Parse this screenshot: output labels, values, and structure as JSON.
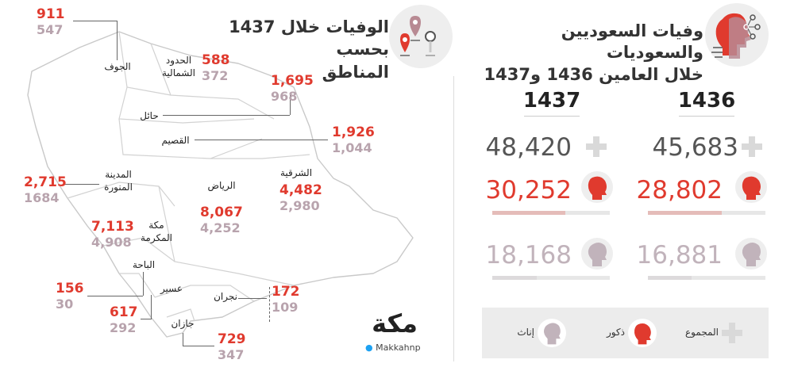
{
  "colors": {
    "male": "#e03a2e",
    "female": "#c1b3bb",
    "total": "#d9d9d9"
  },
  "icons": {
    "header_left": "map-pins-icon",
    "header_right": "human-head-network-icon",
    "male": "male-head-icon",
    "female": "female-head-icon",
    "total": "plus-icon"
  },
  "title_left": {
    "line1": "الوفيات خلال 1437 بحسب",
    "line2": "المناطق"
  },
  "title_right": {
    "line1": "وفيات السعوديين والسعوديات",
    "line2": "خلال العامين 1436 و1437"
  },
  "years": [
    {
      "year": "1436",
      "total": "45,683",
      "male": "28,802",
      "female": "16,881",
      "male_share": 0.6305,
      "female_share": 0.3695
    },
    {
      "year": "1437",
      "total": "48,420",
      "male": "30,252",
      "female": "18,168",
      "male_share": 0.6248,
      "female_share": 0.3752
    }
  ],
  "legend": {
    "total": "المجموع",
    "male": "ذكور",
    "female": "إناث"
  },
  "logo": {
    "name": "مكة",
    "handle": "Makkahnp"
  },
  "regions": {
    "jouf": {
      "name": "الجوف",
      "male": "911",
      "female": "547"
    },
    "northern": {
      "name1": "الحدود",
      "name2": "الشمالية",
      "male": "588",
      "female": "372"
    },
    "hail": {
      "name": "حائل",
      "male": "1,695",
      "female": "968"
    },
    "qassim": {
      "name": "القصيم",
      "male": "1,926",
      "female": "1,044"
    },
    "madinah": {
      "name1": "المدينة",
      "name2": "المنورة",
      "male": "2,715",
      "female": "1684"
    },
    "riyadh": {
      "name": "الرياض",
      "male": "8,067",
      "female": "4,252"
    },
    "eastern": {
      "name": "الشرقية",
      "male": "4,482",
      "female": "2,980"
    },
    "makkah": {
      "name1": "مكة",
      "name2": "المكرمة",
      "male": "7,113",
      "female": "4,908"
    },
    "baha": {
      "name": "الباحة",
      "male": "156",
      "female": "30"
    },
    "asir": {
      "name": "عسير",
      "male": "617",
      "female": "292"
    },
    "najran": {
      "name": "نجران",
      "male": "172",
      "female": "109"
    },
    "jazan": {
      "name": "جازان",
      "male": "729",
      "female": "347"
    }
  }
}
